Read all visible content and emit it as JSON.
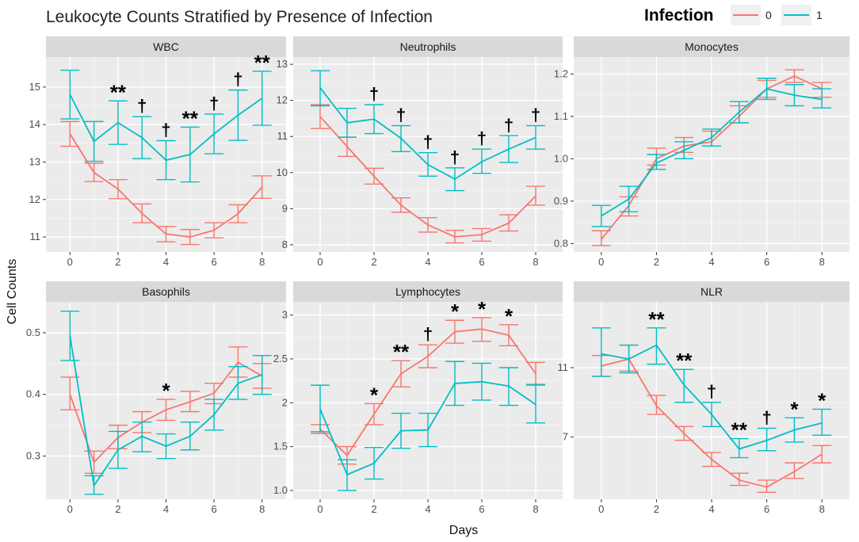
{
  "title": "Leukocyte Counts Stratified by Presence of Infection",
  "legend": {
    "title": "Infection",
    "entries": [
      {
        "label": "0",
        "color": "#F8766D"
      },
      {
        "label": "1",
        "color": "#00BFC4"
      }
    ]
  },
  "axes": {
    "xlabel": "Days",
    "ylabel": "Cell Counts"
  },
  "chart_data": [
    {
      "type": "line",
      "panel": "WBC",
      "x": [
        0,
        1,
        2,
        3,
        4,
        5,
        6,
        7,
        8
      ],
      "xlim": [
        -1,
        9
      ],
      "xticks": [
        0,
        2,
        4,
        6,
        8
      ],
      "ylim": [
        10.6,
        15.8
      ],
      "yticks": [
        11,
        12,
        13,
        14,
        15
      ],
      "series": [
        {
          "name": "0",
          "values": [
            13.75,
            12.72,
            12.28,
            11.63,
            11.08,
            11.0,
            11.18,
            11.62,
            12.33
          ],
          "lower": [
            13.42,
            12.48,
            12.02,
            11.38,
            10.87,
            10.8,
            10.98,
            11.38,
            12.03
          ],
          "upper": [
            14.08,
            12.97,
            12.53,
            11.88,
            11.28,
            11.2,
            11.38,
            11.86,
            12.63
          ]
        },
        {
          "name": "1",
          "values": [
            14.8,
            13.55,
            14.05,
            13.65,
            13.05,
            13.2,
            13.75,
            14.25,
            14.7
          ],
          "lower": [
            14.15,
            13.02,
            13.47,
            13.09,
            12.53,
            12.47,
            13.22,
            13.58,
            13.98
          ],
          "upper": [
            15.45,
            14.08,
            14.63,
            14.21,
            13.57,
            13.93,
            14.28,
            14.92,
            15.42
          ]
        }
      ],
      "annotations": [
        {
          "x": 2,
          "label": "**"
        },
        {
          "x": 3,
          "label": "†"
        },
        {
          "x": 4,
          "label": "†"
        },
        {
          "x": 5,
          "label": "**"
        },
        {
          "x": 6,
          "label": "†"
        },
        {
          "x": 7,
          "label": "†"
        },
        {
          "x": 8,
          "label": "**"
        }
      ]
    },
    {
      "type": "line",
      "panel": "Neutrophils",
      "x": [
        0,
        1,
        2,
        3,
        4,
        5,
        6,
        7,
        8
      ],
      "xlim": [
        -1,
        9
      ],
      "xticks": [
        0,
        2,
        4,
        6,
        8
      ],
      "ylim": [
        7.8,
        13.2
      ],
      "yticks": [
        8,
        9,
        10,
        11,
        12,
        13
      ],
      "series": [
        {
          "name": "0",
          "values": [
            11.55,
            10.72,
            9.9,
            9.1,
            8.55,
            8.22,
            8.28,
            8.6,
            9.35
          ],
          "lower": [
            11.22,
            10.45,
            9.68,
            8.9,
            8.35,
            8.05,
            8.1,
            8.38,
            9.1
          ],
          "upper": [
            11.88,
            10.98,
            10.12,
            9.3,
            8.75,
            8.4,
            8.45,
            8.83,
            9.62
          ]
        },
        {
          "name": "1",
          "values": [
            12.35,
            11.38,
            11.48,
            10.95,
            10.22,
            9.82,
            10.3,
            10.65,
            10.97
          ],
          "lower": [
            11.85,
            10.98,
            11.08,
            10.58,
            9.9,
            9.5,
            9.98,
            10.28,
            10.65
          ],
          "upper": [
            12.82,
            11.78,
            11.88,
            11.3,
            10.55,
            10.13,
            10.65,
            11.02,
            11.3
          ]
        }
      ],
      "annotations": [
        {
          "x": 2,
          "label": "†"
        },
        {
          "x": 3,
          "label": "†"
        },
        {
          "x": 4,
          "label": "†"
        },
        {
          "x": 5,
          "label": "†"
        },
        {
          "x": 6,
          "label": "†"
        },
        {
          "x": 7,
          "label": "†"
        },
        {
          "x": 8,
          "label": "†"
        }
      ]
    },
    {
      "type": "line",
      "panel": "Monocytes",
      "x": [
        0,
        1,
        2,
        3,
        4,
        5,
        6,
        7,
        8
      ],
      "xlim": [
        -1,
        9
      ],
      "xticks": [
        0,
        2,
        4,
        6,
        8
      ],
      "ylim": [
        0.78,
        1.24
      ],
      "yticks": [
        0.8,
        0.9,
        1.0,
        1.1,
        1.2
      ],
      "series": [
        {
          "name": "0",
          "values": [
            0.81,
            0.89,
            1.0,
            1.03,
            1.04,
            1.1,
            1.165,
            1.195,
            1.165
          ],
          "lower": [
            0.795,
            0.865,
            0.985,
            1.015,
            1.03,
            1.085,
            1.145,
            1.18,
            1.145
          ],
          "upper": [
            0.83,
            0.91,
            1.025,
            1.05,
            1.065,
            1.125,
            1.185,
            1.21,
            1.18
          ]
        },
        {
          "name": "1",
          "values": [
            0.865,
            0.905,
            0.99,
            1.02,
            1.05,
            1.11,
            1.165,
            1.15,
            1.14
          ],
          "lower": [
            0.84,
            0.875,
            0.975,
            1.0,
            1.03,
            1.085,
            1.14,
            1.125,
            1.12
          ],
          "upper": [
            0.89,
            0.935,
            1.01,
            1.04,
            1.07,
            1.135,
            1.19,
            1.175,
            1.165
          ]
        }
      ],
      "annotations": []
    },
    {
      "type": "line",
      "panel": "Basophils",
      "x": [
        0,
        1,
        2,
        3,
        4,
        5,
        6,
        7,
        8
      ],
      "xlim": [
        -1,
        9
      ],
      "xticks": [
        0,
        2,
        4,
        6,
        8
      ],
      "ylim": [
        0.23,
        0.55
      ],
      "yticks": [
        0.3,
        0.4,
        0.5
      ],
      "series": [
        {
          "name": "0",
          "values": [
            0.4,
            0.29,
            0.33,
            0.355,
            0.375,
            0.388,
            0.402,
            0.452,
            0.43
          ],
          "lower": [
            0.375,
            0.272,
            0.312,
            0.338,
            0.358,
            0.372,
            0.385,
            0.428,
            0.41
          ],
          "upper": [
            0.428,
            0.308,
            0.35,
            0.372,
            0.392,
            0.405,
            0.418,
            0.477,
            0.45
          ]
        },
        {
          "name": "1",
          "values": [
            0.495,
            0.252,
            0.31,
            0.332,
            0.316,
            0.332,
            0.367,
            0.418,
            0.432
          ],
          "lower": [
            0.455,
            0.238,
            0.28,
            0.307,
            0.296,
            0.31,
            0.342,
            0.392,
            0.4
          ],
          "upper": [
            0.535,
            0.268,
            0.34,
            0.355,
            0.336,
            0.355,
            0.392,
            0.445,
            0.463
          ]
        }
      ],
      "annotations": [
        {
          "x": 4,
          "label": "*"
        }
      ]
    },
    {
      "type": "line",
      "panel": "Lymphocytes",
      "x": [
        0,
        1,
        2,
        3,
        4,
        5,
        6,
        7,
        8
      ],
      "xlim": [
        -1,
        9
      ],
      "xticks": [
        0,
        2,
        4,
        6,
        8
      ],
      "ylim": [
        0.9,
        3.15
      ],
      "yticks": [
        1.0,
        1.5,
        2.0,
        2.5,
        3.0
      ],
      "series": [
        {
          "name": "0",
          "values": [
            1.7,
            1.4,
            1.87,
            2.33,
            2.53,
            2.81,
            2.84,
            2.77,
            2.33
          ],
          "lower": [
            1.65,
            1.3,
            1.75,
            2.18,
            2.4,
            2.68,
            2.7,
            2.65,
            2.2
          ],
          "upper": [
            1.75,
            1.5,
            1.99,
            2.48,
            2.66,
            2.94,
            2.97,
            2.89,
            2.46
          ]
        },
        {
          "name": "1",
          "values": [
            1.93,
            1.18,
            1.31,
            1.68,
            1.69,
            2.22,
            2.24,
            2.19,
            1.98
          ],
          "lower": [
            1.67,
            1.0,
            1.13,
            1.48,
            1.5,
            1.97,
            2.03,
            1.97,
            1.77
          ],
          "upper": [
            2.2,
            1.35,
            1.49,
            1.88,
            1.88,
            2.47,
            2.45,
            2.4,
            2.21
          ]
        }
      ],
      "annotations": [
        {
          "x": 2,
          "label": "*"
        },
        {
          "x": 3,
          "label": "**"
        },
        {
          "x": 4,
          "label": "†"
        },
        {
          "x": 5,
          "label": "*"
        },
        {
          "x": 6,
          "label": "*"
        },
        {
          "x": 7,
          "label": "*"
        }
      ]
    },
    {
      "type": "line",
      "panel": "NLR",
      "x": [
        0,
        1,
        2,
        3,
        4,
        5,
        6,
        7,
        8
      ],
      "xlim": [
        -1,
        9
      ],
      "xticks": [
        0,
        2,
        4,
        6,
        8
      ],
      "ylim": [
        3.4,
        14.8
      ],
      "yticks": [
        7,
        11
      ],
      "series": [
        {
          "name": "0",
          "values": [
            11.1,
            11.5,
            8.8,
            7.2,
            5.7,
            4.5,
            4.1,
            5.0,
            6.0
          ],
          "lower": [
            10.5,
            10.8,
            8.3,
            6.8,
            5.3,
            4.2,
            3.8,
            4.6,
            5.5
          ],
          "upper": [
            11.7,
            12.3,
            9.4,
            7.6,
            6.1,
            4.9,
            4.5,
            5.5,
            6.5
          ]
        },
        {
          "name": "1",
          "values": [
            11.8,
            11.5,
            12.3,
            10.0,
            8.3,
            6.3,
            6.8,
            7.4,
            7.8
          ],
          "lower": [
            10.5,
            10.7,
            11.2,
            9.0,
            7.6,
            5.8,
            6.2,
            6.7,
            7.1
          ],
          "upper": [
            13.3,
            12.3,
            13.3,
            10.9,
            9.0,
            6.9,
            7.5,
            8.1,
            8.6
          ]
        }
      ],
      "annotations": [
        {
          "x": 2,
          "label": "**"
        },
        {
          "x": 3,
          "label": "**"
        },
        {
          "x": 4,
          "label": "†"
        },
        {
          "x": 5,
          "label": "**"
        },
        {
          "x": 6,
          "label": "†"
        },
        {
          "x": 7,
          "label": "*"
        },
        {
          "x": 8,
          "label": "*"
        }
      ]
    }
  ]
}
